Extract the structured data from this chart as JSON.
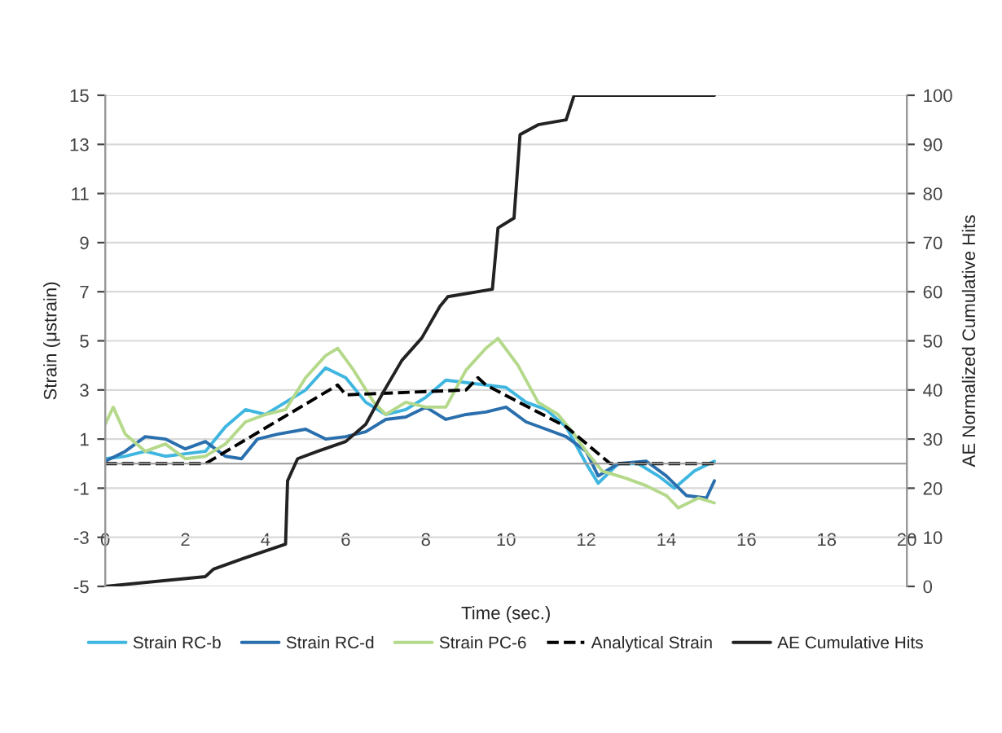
{
  "chart_data": {
    "type": "line",
    "xlabel": "Time (sec.)",
    "ylabel": "Strain (μstrain)",
    "y2label": "AE Normalized Cumulative Hits",
    "xlim": [
      0,
      20
    ],
    "xticks": [
      0,
      2,
      4,
      6,
      8,
      10,
      12,
      14,
      16,
      18,
      20
    ],
    "ylim": [
      -5,
      15
    ],
    "yticks": [
      -5,
      -3,
      -1,
      1,
      3,
      5,
      7,
      9,
      11,
      13,
      15
    ],
    "y2lim": [
      0,
      100
    ],
    "y2ticks": [
      0,
      10,
      20,
      30,
      40,
      50,
      60,
      70,
      80,
      90,
      100
    ],
    "grid": "y",
    "legend": "bottom",
    "series": [
      {
        "name": "Strain RC-b",
        "color": "#3fb6e0",
        "line_style": "solid",
        "x": [
          0,
          0.5,
          1,
          1.5,
          2,
          2.5,
          3,
          3.5,
          4,
          4.5,
          5,
          5.5,
          6,
          6.5,
          7,
          7.5,
          8,
          8.5,
          9,
          9.5,
          10,
          10.5,
          11,
          11.5,
          12,
          12.3,
          12.8,
          13.3,
          13.8,
          14.2,
          14.7,
          15.2
        ],
        "values": [
          0.2,
          0.3,
          0.5,
          0.3,
          0.4,
          0.5,
          1.5,
          2.2,
          2,
          2.5,
          3,
          3.9,
          3.5,
          2.5,
          2.0,
          2.2,
          2.7,
          3.4,
          3.3,
          3.2,
          3.1,
          2.5,
          2.2,
          1.5,
          0,
          -0.8,
          0,
          0,
          -0.5,
          -1,
          -0.3,
          0.1
        ]
      },
      {
        "name": "Strain RC-d",
        "color": "#2a6fad",
        "line_style": "solid",
        "x": [
          0,
          0.5,
          1,
          1.5,
          2,
          2.5,
          3,
          3.4,
          3.8,
          4.3,
          5,
          5.5,
          6,
          6.5,
          7,
          7.5,
          8,
          8.5,
          9,
          9.5,
          10,
          10.5,
          11,
          11.5,
          12,
          12.3,
          12.8,
          13.5,
          14,
          14.5,
          15,
          15.2
        ],
        "values": [
          0.1,
          0.5,
          1.1,
          1.0,
          0.6,
          0.9,
          0.3,
          0.2,
          1.0,
          1.2,
          1.4,
          1.0,
          1.1,
          1.3,
          1.8,
          1.9,
          2.3,
          1.8,
          2.0,
          2.1,
          2.3,
          1.7,
          1.4,
          1.1,
          0.5,
          -0.5,
          0,
          0.1,
          -0.5,
          -1.3,
          -1.4,
          -0.7
        ]
      },
      {
        "name": "Strain PC-6",
        "color": "#b5d98a",
        "line_style": "solid",
        "x": [
          0,
          0.2,
          0.5,
          1,
          1.5,
          2,
          2.5,
          3,
          3.5,
          4,
          4.5,
          5,
          5.5,
          5.8,
          6.2,
          6.7,
          7,
          7.5,
          8,
          8.5,
          9,
          9.5,
          9.8,
          10.3,
          10.8,
          11.3,
          11.7,
          12,
          12.4,
          13,
          13.5,
          14,
          14.3,
          14.8,
          15.2
        ],
        "values": [
          1.6,
          2.3,
          1.2,
          0.5,
          0.8,
          0.2,
          0.3,
          0.8,
          1.7,
          2.0,
          2.2,
          3.5,
          4.4,
          4.7,
          3.8,
          2.5,
          2.0,
          2.5,
          2.3,
          2.3,
          3.8,
          4.7,
          5.1,
          4.0,
          2.5,
          2.0,
          1.2,
          0.5,
          -0.3,
          -0.6,
          -0.9,
          -1.3,
          -1.8,
          -1.4,
          -1.6
        ]
      },
      {
        "name": "Analytical Strain",
        "color": "#000000",
        "line_style": "dashed",
        "x": [
          0,
          2.5,
          5.8,
          6,
          9,
          9.3,
          9.5,
          11.5,
          12.6,
          15.2
        ],
        "values": [
          0,
          0,
          3.2,
          2.8,
          3.0,
          3.5,
          3.2,
          1.5,
          0,
          0
        ]
      },
      {
        "name": "AE Cumulative Hits",
        "color": "#222222",
        "line_style": "solid",
        "axis": "y2",
        "x": [
          0,
          2.5,
          2.7,
          3.45,
          4.5,
          4.55,
          4.8,
          5.3,
          6.0,
          6.5,
          6.9,
          7.4,
          7.9,
          8.35,
          8.55,
          9.66,
          9.8,
          10.2,
          10.35,
          10.8,
          11.5,
          11.7,
          15.2
        ],
        "values": [
          0,
          2,
          3.5,
          5.7,
          8.6,
          21.5,
          26,
          27.5,
          29.5,
          33,
          39,
          46,
          50.6,
          57,
          59,
          60.5,
          73,
          75,
          92,
          94,
          95,
          100,
          100
        ]
      }
    ]
  }
}
